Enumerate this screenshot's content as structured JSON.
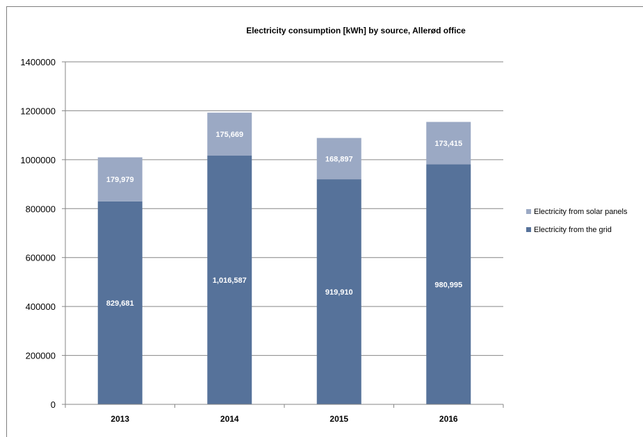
{
  "chart_data": {
    "type": "bar",
    "stacked": true,
    "title": "Electricity consumption [kWh] by source, Allerød office",
    "xlabel": "",
    "ylabel": "",
    "categories": [
      "2013",
      "2014",
      "2015",
      "2016"
    ],
    "ylim": [
      0,
      1400000
    ],
    "yticks": [
      0,
      200000,
      400000,
      600000,
      800000,
      1000000,
      1200000,
      1400000
    ],
    "ytick_labels": [
      "0",
      "200000",
      "400000",
      "600000",
      "800000",
      "1000000",
      "1200000",
      "1400000"
    ],
    "grid": true,
    "legend_position": "right",
    "series": [
      {
        "name": "Electricity from the grid",
        "values": [
          829681,
          1016587,
          919910,
          980995
        ],
        "labels": [
          "829,681",
          "1,016,587",
          "919,910",
          "980,995"
        ],
        "color": "#56729a"
      },
      {
        "name": "Electricity from solar panels",
        "values": [
          179979,
          175669,
          168897,
          173415
        ],
        "labels": [
          "179,979",
          "175,669",
          "168,897",
          "173,415"
        ],
        "color": "#9ba9c4"
      }
    ],
    "legend_order": [
      1,
      0
    ]
  }
}
